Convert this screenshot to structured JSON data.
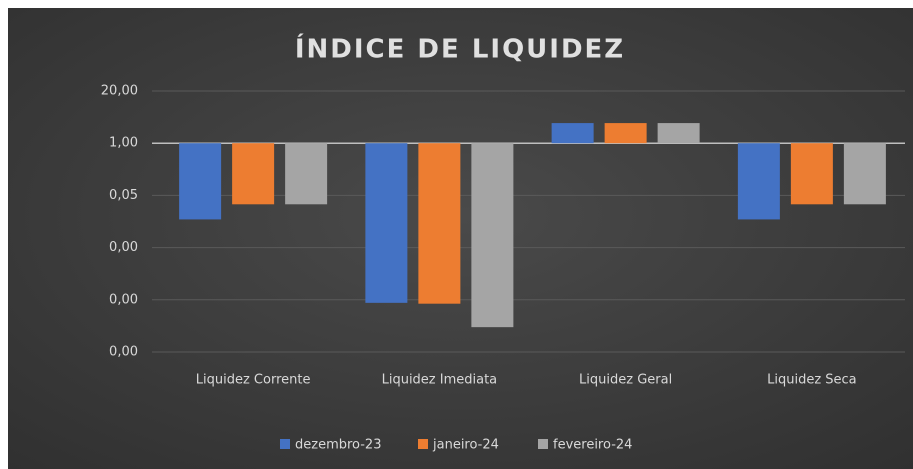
{
  "chart_data": {
    "type": "bar",
    "title": "ÍNDICE DE LIQUIDEZ",
    "categories": [
      "Liquidez Corrente",
      "Liquidez Imediata",
      "Liquidez Geral",
      "Liquidez Seca"
    ],
    "series": [
      {
        "name": "dezembro-23",
        "color": "#4472c4",
        "values": [
          0.0126,
          0.000105,
          3.17,
          0.0126
        ]
      },
      {
        "name": "janeiro-24",
        "color": "#ed7d31",
        "values": [
          0.03,
          0.0001,
          3.17,
          0.03
        ]
      },
      {
        "name": "fevereiro-24",
        "color": "#a5a5a5",
        "values": [
          0.03,
          2.6e-05,
          3.17,
          0.03
        ]
      }
    ],
    "yscale": "log",
    "log_base": 20,
    "ylim": [
      6.25e-06,
      20
    ],
    "yticks": [
      {
        "value": 20,
        "label": "20,00"
      },
      {
        "value": 1,
        "label": "1,00"
      },
      {
        "value": 0.05,
        "label": "0,05"
      },
      {
        "value": 0.0025,
        "label": "0,00"
      },
      {
        "value": 0.000125,
        "label": "0,00"
      },
      {
        "value": 6.25e-06,
        "label": "0,00"
      }
    ],
    "grid": true,
    "legend": "bottom"
  }
}
